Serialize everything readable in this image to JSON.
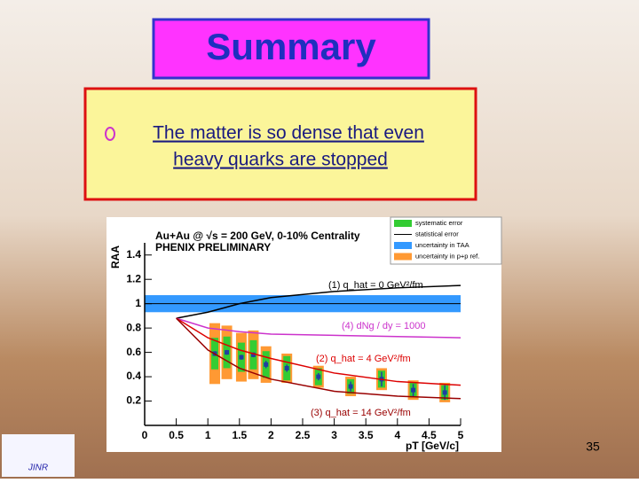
{
  "title": "Summary",
  "bullet": [
    "The matter is so dense that even",
    "heavy quarks are stopped"
  ],
  "page_number": "35",
  "logo_text": "JINR",
  "chart_data": {
    "type": "scatter",
    "header": "Au+Au @ √s = 200 GeV, 0-10% Centrality",
    "subheader": "PHENIX PRELIMINARY",
    "x_label": "pT [GeV/c]",
    "y_label": "RAA",
    "xlim": [
      0,
      5
    ],
    "ylim": [
      0,
      1.5
    ],
    "xticks": [
      0,
      0.5,
      1,
      1.5,
      2,
      2.5,
      3,
      3.5,
      4,
      4.5,
      5
    ],
    "yticks": [
      0.2,
      0.4,
      0.6,
      0.8,
      1,
      1.2,
      1.4
    ],
    "legend": [
      {
        "name": "systematic error",
        "color": "#33cc33"
      },
      {
        "name": "statistical error",
        "color": "#000000"
      },
      {
        "name": "uncertainty in TAA",
        "color": "#3399ff"
      },
      {
        "name": "uncertainty in p+p ref.",
        "color": "#ff9933"
      }
    ],
    "taa_band": [
      0.93,
      1.07
    ],
    "points": {
      "color": "#1f3fa0",
      "x": [
        1.11,
        1.3,
        1.53,
        1.72,
        1.92,
        2.25,
        2.75,
        3.26,
        3.75,
        4.25,
        4.75
      ],
      "values": [
        0.59,
        0.6,
        0.56,
        0.58,
        0.5,
        0.47,
        0.4,
        0.32,
        0.38,
        0.29,
        0.27
      ],
      "stat_errors": [
        0.02,
        0.02,
        0.02,
        0.02,
        0.03,
        0.03,
        0.03,
        0.04,
        0.06,
        0.05,
        0.06
      ],
      "syst_errors": [
        0.13,
        0.13,
        0.12,
        0.12,
        0.11,
        0.1,
        0.07,
        0.06,
        0.07,
        0.06,
        0.06
      ],
      "ppref_errors": [
        0.25,
        0.22,
        0.2,
        0.2,
        0.15,
        0.12,
        0.09,
        0.08,
        0.09,
        0.08,
        0.08
      ]
    },
    "curves": [
      {
        "name": "(1) q_hat = 0 GeV²/fm",
        "color": "#000000",
        "x": [
          0.5,
          1,
          1.5,
          2,
          3,
          4,
          5
        ],
        "values": [
          0.88,
          0.93,
          1.0,
          1.05,
          1.1,
          1.13,
          1.15
        ]
      },
      {
        "name": "(4) dNg / dy = 1000",
        "color": "#cc33cc",
        "x": [
          0.5,
          1,
          1.5,
          2,
          3,
          4,
          5
        ],
        "values": [
          0.88,
          0.8,
          0.77,
          0.75,
          0.74,
          0.73,
          0.72
        ]
      },
      {
        "name": "(2) q_hat = 4 GeV²/fm",
        "color": "#dd0000",
        "x": [
          0.5,
          1,
          1.5,
          2,
          3,
          4,
          5
        ],
        "values": [
          0.88,
          0.72,
          0.62,
          0.55,
          0.43,
          0.36,
          0.33
        ]
      },
      {
        "name": "(3) q_hat = 14 GeV²/fm",
        "color": "#990000",
        "x": [
          0.5,
          1,
          1.5,
          2,
          3,
          4,
          5
        ],
        "values": [
          0.88,
          0.62,
          0.47,
          0.38,
          0.28,
          0.24,
          0.22
        ]
      }
    ]
  }
}
